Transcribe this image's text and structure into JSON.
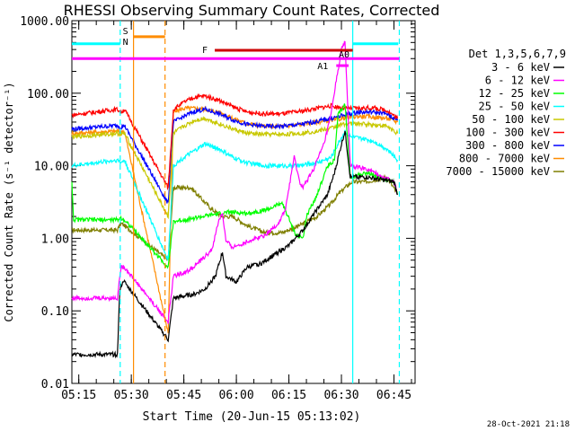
{
  "chart_data": {
    "type": "line",
    "title": "RHESSI Observing Summary Count Rates, Corrected",
    "xlabel": "Start Time (20-Jun-15 05:13:02)",
    "ylabel": "Corrected Count Rate (s⁻¹ detector⁻¹)",
    "yscale": "log",
    "xlim_minutes": [
      0,
      98
    ],
    "ylim": [
      0.01,
      1000
    ],
    "x_ticks": [
      {
        "label": "05:15",
        "minute": 1.97
      },
      {
        "label": "05:30",
        "minute": 16.97
      },
      {
        "label": "05:45",
        "minute": 31.97
      },
      {
        "label": "06:00",
        "minute": 46.97
      },
      {
        "label": "06:15",
        "minute": 61.97
      },
      {
        "label": "06:30",
        "minute": 76.97
      },
      {
        "label": "06:45",
        "minute": 91.97
      }
    ],
    "y_ticks": [
      {
        "label": "0.01",
        "value": 0.01
      },
      {
        "label": "0.10",
        "value": 0.1
      },
      {
        "label": "1.00",
        "value": 1
      },
      {
        "label": "10.00",
        "value": 10
      },
      {
        "label": "100.00",
        "value": 100
      },
      {
        "label": "1000.00",
        "value": 1000
      }
    ],
    "legend": {
      "placement": "right",
      "header": "Det 1,3,5,6,7,9",
      "entries": [
        {
          "label": "3 - 6 keV",
          "color": "#000000"
        },
        {
          "label": "6 - 12 keV",
          "color": "#ff00ff"
        },
        {
          "label": "12 - 25 keV",
          "color": "#00ff00"
        },
        {
          "label": "25 - 50 keV",
          "color": "#00ffff"
        },
        {
          "label": "50 - 100 keV",
          "color": "#c8c800"
        },
        {
          "label": "100 - 300 keV",
          "color": "#ff0000"
        },
        {
          "label": "300 - 800 keV",
          "color": "#0000ff"
        },
        {
          "label": "800 - 7000 keV",
          "color": "#ff8c00"
        },
        {
          "label": "7000 - 15000 keV",
          "color": "#7f7f00"
        }
      ]
    },
    "series": [
      {
        "name": "3 - 6 keV",
        "color": "#000000",
        "points": [
          [
            0,
            0.025
          ],
          [
            13,
            0.025
          ],
          [
            13.7,
            0.2
          ],
          [
            14.5,
            0.25
          ],
          [
            15,
            0.25
          ],
          [
            27.5,
            0.04
          ],
          [
            29,
            0.15
          ],
          [
            35,
            0.17
          ],
          [
            38,
            0.2
          ],
          [
            41,
            0.3
          ],
          [
            43,
            0.65
          ],
          [
            44,
            0.3
          ],
          [
            47,
            0.25
          ],
          [
            50,
            0.4
          ],
          [
            54,
            0.45
          ],
          [
            58,
            0.6
          ],
          [
            62,
            0.8
          ],
          [
            66,
            1.3
          ],
          [
            70,
            2.5
          ],
          [
            73,
            4
          ],
          [
            75,
            8
          ],
          [
            77,
            20
          ],
          [
            78,
            30
          ],
          [
            79.5,
            7
          ],
          [
            84,
            7
          ],
          [
            92,
            6
          ],
          [
            93,
            4
          ]
        ]
      },
      {
        "name": "6 - 12 keV",
        "color": "#ff00ff",
        "points": [
          [
            0,
            0.15
          ],
          [
            13,
            0.15
          ],
          [
            14,
            0.4
          ],
          [
            15,
            0.4
          ],
          [
            27.5,
            0.07
          ],
          [
            29,
            0.3
          ],
          [
            33,
            0.35
          ],
          [
            37,
            0.5
          ],
          [
            40,
            0.7
          ],
          [
            42,
            1.8
          ],
          [
            43,
            2.2
          ],
          [
            44,
            0.9
          ],
          [
            46,
            0.75
          ],
          [
            50,
            0.9
          ],
          [
            55,
            1.1
          ],
          [
            59,
            1.6
          ],
          [
            61,
            2.5
          ],
          [
            62.5,
            7
          ],
          [
            63.5,
            13
          ],
          [
            65,
            6
          ],
          [
            66,
            5
          ],
          [
            69,
            9
          ],
          [
            72,
            20
          ],
          [
            74,
            50
          ],
          [
            75.5,
            150
          ],
          [
            77,
            400
          ],
          [
            78,
            500
          ],
          [
            79.5,
            10
          ],
          [
            84,
            9
          ],
          [
            92,
            6
          ],
          [
            93,
            4
          ]
        ]
      },
      {
        "name": "12 - 25 keV",
        "color": "#00ff00",
        "points": [
          [
            0,
            6
          ],
          [
            0.5,
            1.8
          ],
          [
            13,
            1.8
          ],
          [
            14,
            1.9
          ],
          [
            15,
            1.8
          ],
          [
            27.5,
            0.4
          ],
          [
            29,
            1.7
          ],
          [
            35,
            1.9
          ],
          [
            40,
            2.1
          ],
          [
            45,
            2.3
          ],
          [
            50,
            2.2
          ],
          [
            56,
            2.5
          ],
          [
            60,
            3.1
          ],
          [
            64,
            1.1
          ],
          [
            66,
            1
          ],
          [
            67,
            2
          ],
          [
            70,
            4
          ],
          [
            73,
            10
          ],
          [
            75,
            12
          ],
          [
            76,
            50
          ],
          [
            78,
            70
          ],
          [
            79.5,
            7
          ],
          [
            84,
            8
          ],
          [
            92,
            6
          ],
          [
            93,
            4
          ]
        ]
      },
      {
        "name": "25 - 50 keV",
        "color": "#00ffff",
        "points": [
          [
            0,
            10
          ],
          [
            13,
            12
          ],
          [
            14,
            11
          ],
          [
            15,
            12
          ],
          [
            27.5,
            0.5
          ],
          [
            29,
            10
          ],
          [
            32,
            13
          ],
          [
            35,
            16
          ],
          [
            38,
            20
          ],
          [
            42,
            17
          ],
          [
            46,
            13
          ],
          [
            50,
            11
          ],
          [
            55,
            10
          ],
          [
            60,
            10
          ],
          [
            65,
            10
          ],
          [
            70,
            11
          ],
          [
            74,
            13
          ],
          [
            76,
            20
          ],
          [
            78,
            30
          ],
          [
            79.5,
            25
          ],
          [
            82,
            24
          ],
          [
            86,
            22
          ],
          [
            90,
            17
          ],
          [
            93,
            12
          ]
        ]
      },
      {
        "name": "50 - 100 keV",
        "color": "#c8c800",
        "points": [
          [
            0,
            25
          ],
          [
            13,
            28
          ],
          [
            14,
            27
          ],
          [
            15,
            28
          ],
          [
            27.5,
            2
          ],
          [
            29,
            28
          ],
          [
            32,
            35
          ],
          [
            35,
            42
          ],
          [
            38,
            45
          ],
          [
            42,
            38
          ],
          [
            46,
            32
          ],
          [
            50,
            28
          ],
          [
            55,
            27
          ],
          [
            60,
            27
          ],
          [
            65,
            28
          ],
          [
            70,
            30
          ],
          [
            74,
            33
          ],
          [
            78,
            38
          ],
          [
            82,
            38
          ],
          [
            86,
            37
          ],
          [
            90,
            35
          ],
          [
            93,
            28
          ]
        ]
      },
      {
        "name": "100 - 300 keV",
        "color": "#ff0000",
        "points": [
          [
            0,
            50
          ],
          [
            13,
            60
          ],
          [
            14,
            55
          ],
          [
            15,
            60
          ],
          [
            27.5,
            5
          ],
          [
            29,
            60
          ],
          [
            32,
            75
          ],
          [
            35,
            88
          ],
          [
            38,
            92
          ],
          [
            42,
            80
          ],
          [
            46,
            65
          ],
          [
            50,
            55
          ],
          [
            55,
            52
          ],
          [
            60,
            52
          ],
          [
            65,
            56
          ],
          [
            70,
            62
          ],
          [
            74,
            67
          ],
          [
            78,
            62
          ],
          [
            82,
            62
          ],
          [
            86,
            63
          ],
          [
            90,
            58
          ],
          [
            93,
            45
          ]
        ]
      },
      {
        "name": "300 - 800 keV",
        "color": "#0000ff",
        "points": [
          [
            0,
            32
          ],
          [
            13,
            36
          ],
          [
            14,
            34
          ],
          [
            15,
            36
          ],
          [
            27.5,
            3
          ],
          [
            29,
            40
          ],
          [
            32,
            48
          ],
          [
            35,
            56
          ],
          [
            38,
            60
          ],
          [
            42,
            52
          ],
          [
            46,
            43
          ],
          [
            50,
            37
          ],
          [
            55,
            35
          ],
          [
            60,
            35
          ],
          [
            65,
            37
          ],
          [
            70,
            41
          ],
          [
            74,
            45
          ],
          [
            78,
            50
          ],
          [
            82,
            55
          ],
          [
            86,
            55
          ],
          [
            90,
            52
          ],
          [
            93,
            42
          ]
        ]
      },
      {
        "name": "800 - 7000 keV",
        "color": "#ff8c00",
        "points": [
          [
            0,
            28
          ],
          [
            13,
            30
          ],
          [
            14,
            29
          ],
          [
            15,
            30
          ],
          [
            27.5,
            0.05
          ],
          [
            29,
            55
          ],
          [
            32,
            62
          ],
          [
            35,
            62
          ],
          [
            38,
            60
          ],
          [
            42,
            55
          ],
          [
            46,
            45
          ],
          [
            50,
            38
          ],
          [
            55,
            35
          ],
          [
            60,
            35
          ],
          [
            65,
            37
          ],
          [
            70,
            40
          ],
          [
            74,
            42
          ],
          [
            78,
            46
          ],
          [
            82,
            48
          ],
          [
            86,
            47
          ],
          [
            90,
            45
          ],
          [
            93,
            40
          ]
        ]
      },
      {
        "name": "7000 - 15000 keV",
        "color": "#7f7f00",
        "points": [
          [
            0,
            1.3
          ],
          [
            13,
            1.3
          ],
          [
            14,
            1.6
          ],
          [
            15,
            1.5
          ],
          [
            27.5,
            0.5
          ],
          [
            29,
            5
          ],
          [
            34,
            5
          ],
          [
            37,
            3.5
          ],
          [
            40,
            2.5
          ],
          [
            43,
            2
          ],
          [
            46,
            2
          ],
          [
            50,
            1.5
          ],
          [
            55,
            1.2
          ],
          [
            60,
            1.2
          ],
          [
            65,
            1.5
          ],
          [
            70,
            2
          ],
          [
            74,
            3
          ],
          [
            76,
            4
          ],
          [
            78,
            5
          ],
          [
            80,
            6
          ],
          [
            84,
            6
          ],
          [
            90,
            7
          ],
          [
            93,
            4
          ]
        ]
      }
    ],
    "annotations": [
      {
        "label": "S",
        "color": "#ff8c00"
      },
      {
        "label": "N",
        "color": "#00ffff"
      },
      {
        "label": "F",
        "color": "#cc0000"
      },
      {
        "label": "A1",
        "color": "#ff00ff"
      },
      {
        "label": "A0",
        "color": "#7f7f00"
      }
    ],
    "bars": [
      {
        "name": "saa-bar",
        "label_ref": "S",
        "color": "#ff8c00",
        "x_start": 17.6,
        "x_end": 26.6,
        "y": 600
      },
      {
        "name": "night-bar-1",
        "label_ref": "N",
        "color": "#00ffff",
        "x_start": 0,
        "x_end": 13.8,
        "y": 480
      },
      {
        "name": "night-bar-2",
        "label_ref": "N",
        "color": "#00ffff",
        "x_start": 80.2,
        "x_end": 93.2,
        "y": 480
      },
      {
        "name": "flare-bar",
        "label_ref": "F",
        "color": "#cc0000",
        "x_start": 40.8,
        "x_end": 80.2,
        "y": 390
      },
      {
        "name": "attenuator-bar",
        "label_ref": "A1",
        "color": "#ff00ff",
        "x_start": 0,
        "x_end": 93.5,
        "y": 300
      },
      {
        "name": "attenuator-a1-bar",
        "label_ref": "A1",
        "color": "#ff00ff",
        "x_start": 75.5,
        "x_end": 79.0,
        "y": 240
      }
    ],
    "vertical_lines": [
      {
        "name": "night-start-1",
        "minute": 13.8,
        "color": "#00ffff",
        "dashed": true
      },
      {
        "name": "saa-start",
        "minute": 17.6,
        "color": "#ff8c00",
        "dashed": false
      },
      {
        "name": "saa-end",
        "minute": 26.6,
        "color": "#ff8c00",
        "dashed": true
      },
      {
        "name": "night-end-2",
        "minute": 80.2,
        "color": "#00ffff",
        "dashed": false
      },
      {
        "name": "night-start-2",
        "minute": 93.5,
        "color": "#00ffff",
        "dashed": true
      }
    ],
    "footer_date": "28-Oct-2021 21:18"
  }
}
